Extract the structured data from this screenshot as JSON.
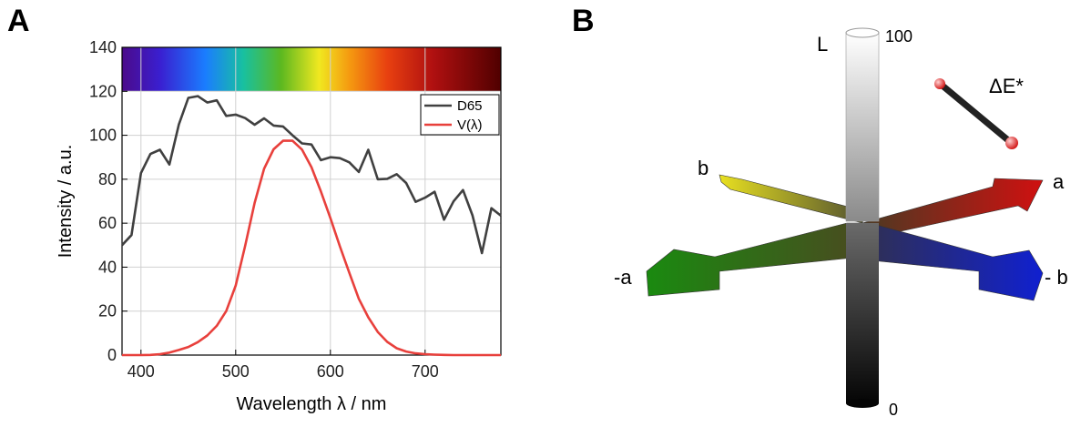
{
  "panel_labels": [
    "A",
    "B"
  ],
  "chart_data": {
    "type": "line",
    "x_label": "Wavelength λ / nm",
    "y_label": "Intensity / a.u.",
    "x": [
      380,
      390,
      400,
      410,
      420,
      430,
      440,
      450,
      460,
      470,
      480,
      490,
      500,
      510,
      520,
      530,
      540,
      550,
      560,
      570,
      580,
      590,
      600,
      610,
      620,
      630,
      640,
      650,
      660,
      670,
      680,
      690,
      700,
      710,
      720,
      730,
      740,
      750,
      760,
      770,
      780
    ],
    "series": [
      {
        "name": "D65",
        "color": "#404040",
        "values": [
          50.0,
          54.6,
          82.8,
          91.5,
          93.4,
          86.7,
          104.9,
          117.0,
          117.8,
          114.9,
          115.9,
          108.8,
          109.4,
          107.8,
          104.8,
          107.7,
          104.4,
          104.0,
          100.0,
          96.3,
          95.8,
          88.7,
          90.0,
          89.6,
          87.7,
          83.3,
          93.4,
          80.0,
          80.2,
          82.3,
          78.3,
          69.7,
          71.6,
          74.3,
          61.6,
          69.9,
          75.1,
          63.6,
          46.4,
          66.8,
          63.4
        ]
      },
      {
        "name": "V(λ)",
        "color": "#e8403c",
        "values": [
          0,
          0,
          0,
          0.1,
          0.4,
          1.1,
          2.3,
          3.7,
          5.9,
          8.9,
          13.3,
          20,
          31.6,
          49.7,
          69.2,
          84.8,
          93.6,
          97.5,
          97.5,
          93.5,
          85.5,
          74.4,
          62.3,
          49.5,
          37.4,
          25.6,
          17.2,
          10.5,
          6.0,
          3.1,
          1.6,
          0.8,
          0.4,
          0.2,
          0.1,
          0,
          0,
          0,
          0,
          0,
          0
        ]
      }
    ],
    "xlim": [
      380,
      780
    ],
    "xticks": [
      400,
      500,
      600,
      700
    ],
    "ylim": [
      0,
      140
    ],
    "yticks": [
      0,
      20,
      40,
      60,
      80,
      100,
      120,
      140
    ],
    "grid": true,
    "legend": "upper right"
  },
  "diagram": {
    "axis_L": "L",
    "top_value": "100",
    "bottom_value": "0",
    "a": "a",
    "minus_a": "-a",
    "b": "b",
    "minus_b": "- b",
    "delta_e": "ΔE*"
  }
}
